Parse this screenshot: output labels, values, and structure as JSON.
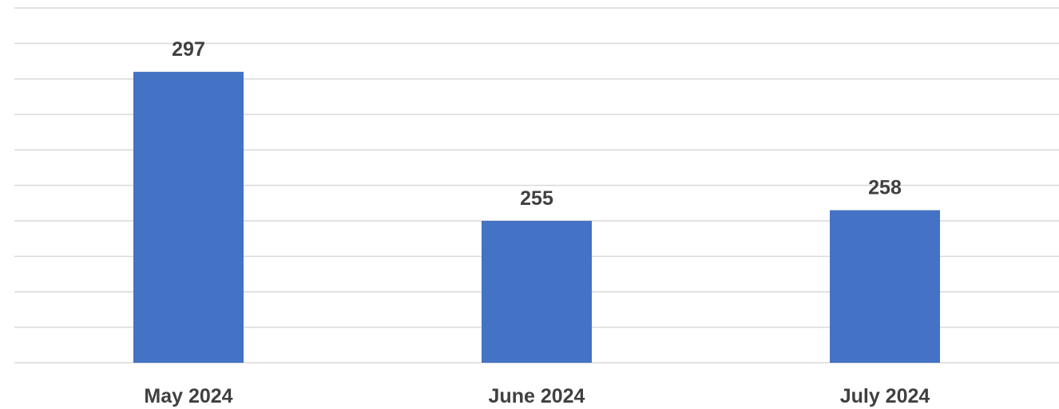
{
  "chart_data": {
    "type": "bar",
    "title": "",
    "xlabel": "",
    "ylabel": "",
    "categories": [
      "May 2024",
      "June 2024",
      "July 2024"
    ],
    "series": [
      {
        "values": [
          297,
          255,
          258
        ]
      }
    ],
    "ylim": [
      215,
      315
    ],
    "y_gridline_step": 10,
    "y_tick_labels_visible": false,
    "grid": true,
    "legend": "none",
    "data_labels": true,
    "colors": {
      "bar": "#4472c4",
      "gridline": "#d9d9d9",
      "text": "#404040"
    }
  }
}
